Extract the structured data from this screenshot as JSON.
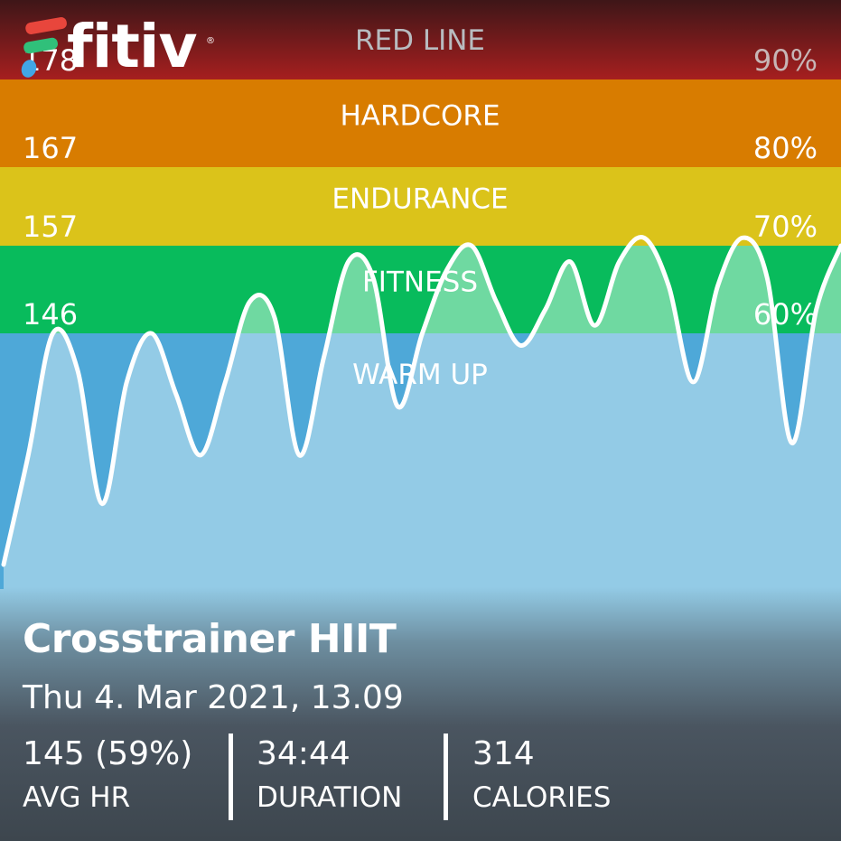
{
  "app": {
    "logo_text": "fitiv",
    "logo_mark": "®",
    "logo_colors": [
      "#e8463c",
      "#30c07a",
      "#42a6e6"
    ]
  },
  "chart_data": {
    "type": "area",
    "y_unit": "bpm",
    "ylim": [
      125,
      183
    ],
    "zones": [
      {
        "name": "RED LINE",
        "bpm": "178",
        "percent": "90%",
        "min": 178,
        "max": 183,
        "color": "#a61f1f",
        "color_top": "#3e1618"
      },
      {
        "name": "HARDCORE",
        "bpm": "167",
        "percent": "80%",
        "min": 167,
        "max": 178,
        "color": "#d87c00"
      },
      {
        "name": "ENDURANCE",
        "bpm": "157",
        "percent": "70%",
        "min": 157,
        "max": 167,
        "color": "#dbc31a"
      },
      {
        "name": "FITNESS",
        "bpm": "146",
        "percent": "60%",
        "min": 146,
        "max": 157,
        "color": "#08bb5c",
        "fill_color": "#6fd9a1"
      },
      {
        "name": "WARM UP",
        "min": 125,
        "max": 146,
        "color": "#4ea8d8",
        "fill_color": "#93cbe6"
      }
    ],
    "series": [
      {
        "x": [
          0,
          1,
          2,
          3,
          4,
          5,
          6,
          7,
          8,
          9,
          10,
          11,
          12,
          13,
          14,
          15,
          16,
          17,
          18,
          19,
          20,
          21,
          22,
          23,
          24,
          25,
          26,
          27,
          28,
          29,
          30,
          31,
          32,
          33,
          34
        ],
        "values": [
          127,
          136,
          146,
          143,
          132,
          142,
          146,
          141,
          136,
          142,
          150,
          148,
          136,
          144,
          155,
          153,
          140,
          146,
          154,
          157,
          150,
          145,
          149,
          155,
          147,
          155,
          158,
          152,
          142,
          152,
          158,
          153,
          137,
          149,
          157
        ],
        "color": "#ffffff"
      }
    ]
  },
  "workout": {
    "title": "Crosstrainer HIIT",
    "date": "Thu 4. Mar 2021, 13.09"
  },
  "stats": [
    {
      "value": "145 (59%)",
      "label": "AVG HR"
    },
    {
      "value": "34:44",
      "label": "DURATION"
    },
    {
      "value": "314",
      "label": "CALORIES"
    }
  ]
}
